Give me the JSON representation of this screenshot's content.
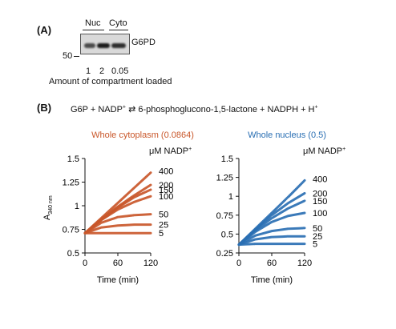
{
  "panel_a": {
    "label": "(A)",
    "lane_group_labels": [
      "Nuc",
      "Cyto"
    ],
    "band_label": "G6PD",
    "mw_marker": "50",
    "lane_values": [
      "1",
      "2",
      "0.05"
    ],
    "x_caption": "Amount of compartment loaded"
  },
  "panel_b": {
    "label": "(B)",
    "equation_left": "G6P + NADP",
    "equation_right": "6-phosphoglucono-1,5-lactone + NADPH + H"
  },
  "colors": {
    "cytoplasm": "#c9572a",
    "nucleus": "#2a6fb3"
  },
  "chart_data": [
    {
      "type": "line",
      "title": "Whole cytoplasm (0.0864)",
      "xlabel": "Time (min)",
      "ylabel": "A340 nm",
      "ylabel_main": "A",
      "ylabel_sub": "340 nm",
      "xlim": [
        0,
        120
      ],
      "ylim": [
        0.5,
        1.5
      ],
      "xticks": [
        "0",
        "60",
        "120"
      ],
      "yticks": [
        "0.5",
        "0.75",
        "1",
        "1.25",
        "1.5"
      ],
      "legend_title": "μM NADP",
      "x": [
        0,
        30,
        60,
        90,
        120
      ],
      "series": [
        {
          "name": "400",
          "values": [
            0.71,
            0.87,
            1.03,
            1.19,
            1.35
          ]
        },
        {
          "name": "200",
          "values": [
            0.71,
            0.86,
            0.99,
            1.11,
            1.22
          ]
        },
        {
          "name": "150",
          "values": [
            0.71,
            0.85,
            0.98,
            1.09,
            1.17
          ]
        },
        {
          "name": "100",
          "values": [
            0.71,
            0.85,
            0.96,
            1.04,
            1.1
          ]
        },
        {
          "name": "50",
          "values": [
            0.71,
            0.82,
            0.88,
            0.9,
            0.91
          ]
        },
        {
          "name": "25",
          "values": [
            0.71,
            0.77,
            0.79,
            0.8,
            0.8
          ]
        },
        {
          "name": "5",
          "values": [
            0.71,
            0.71,
            0.71,
            0.71,
            0.71
          ]
        }
      ]
    },
    {
      "type": "line",
      "title": "Whole nucleus (0.5)",
      "xlabel": "Time (min)",
      "ylabel": "",
      "xlim": [
        0,
        120
      ],
      "ylim": [
        0.25,
        1.5
      ],
      "xticks": [
        "0",
        "60",
        "120"
      ],
      "yticks": [
        "0.25",
        "0.5",
        "0.75",
        "1",
        "1.25",
        "1.5"
      ],
      "legend_title": "μM NADP",
      "x": [
        0,
        30,
        60,
        90,
        120
      ],
      "series": [
        {
          "name": "400",
          "values": [
            0.36,
            0.57,
            0.78,
            0.99,
            1.21
          ]
        },
        {
          "name": "200",
          "values": [
            0.36,
            0.56,
            0.75,
            0.91,
            1.04
          ]
        },
        {
          "name": "150",
          "values": [
            0.36,
            0.55,
            0.71,
            0.84,
            0.94
          ]
        },
        {
          "name": "100",
          "values": [
            0.36,
            0.53,
            0.66,
            0.74,
            0.78
          ]
        },
        {
          "name": "50",
          "values": [
            0.36,
            0.48,
            0.54,
            0.57,
            0.58
          ]
        },
        {
          "name": "25",
          "values": [
            0.36,
            0.43,
            0.46,
            0.47,
            0.47
          ]
        },
        {
          "name": "5",
          "values": [
            0.36,
            0.37,
            0.37,
            0.37,
            0.37
          ]
        }
      ]
    }
  ]
}
